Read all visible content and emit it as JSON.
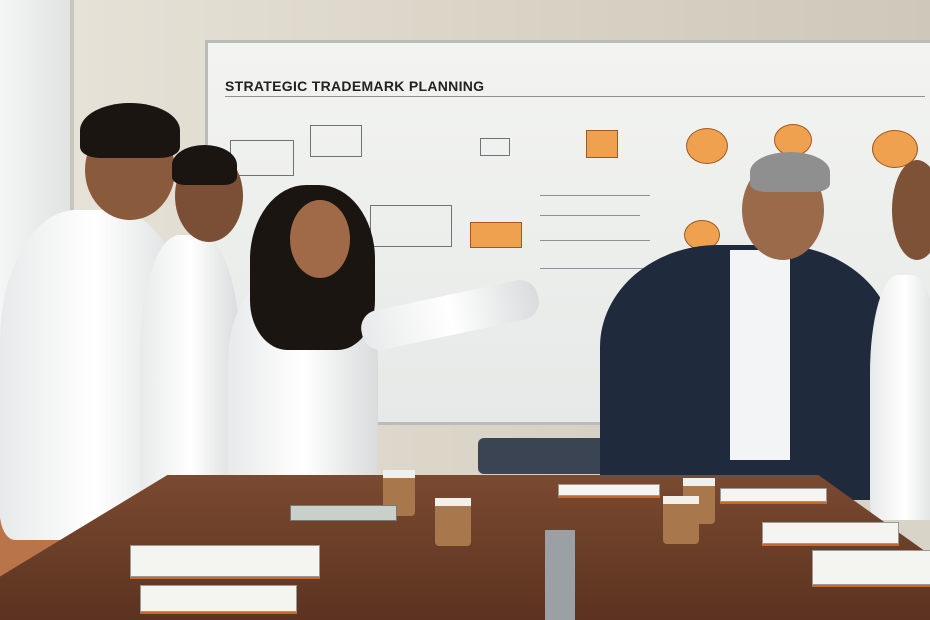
{
  "whiteboard": {
    "title": "STRATEGIC TRADEMARK PLANNING"
  },
  "colors": {
    "accent_orange": "#f0a150",
    "wall": "#e1dccf",
    "table": "#6b3d27",
    "suit": "#1f2a3c"
  }
}
